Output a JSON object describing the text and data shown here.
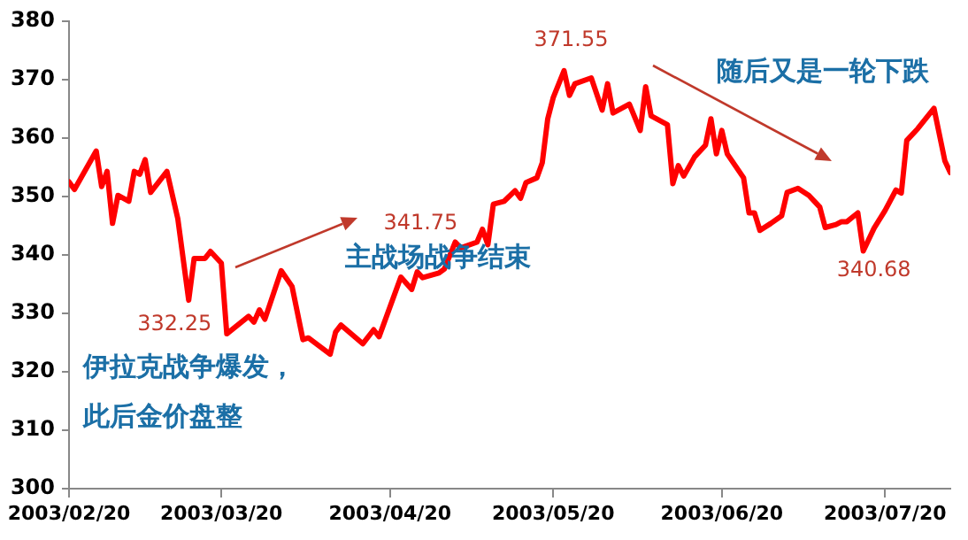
{
  "chart_data": {
    "type": "line",
    "x": [
      "2003-02-20",
      "2003-02-21",
      "2003-02-25",
      "2003-02-26",
      "2003-02-27",
      "2003-02-28",
      "2003-03-01",
      "2003-03-03",
      "2003-03-04",
      "2003-03-05",
      "2003-03-06",
      "2003-03-07",
      "2003-03-10",
      "2003-03-12",
      "2003-03-14",
      "2003-03-15",
      "2003-03-17",
      "2003-03-18",
      "2003-03-20",
      "2003-03-21",
      "2003-03-25",
      "2003-03-26",
      "2003-03-27",
      "2003-03-28",
      "2003-03-31",
      "2003-04-02",
      "2003-04-04",
      "2003-04-05",
      "2003-04-09",
      "2003-04-10",
      "2003-04-11",
      "2003-04-15",
      "2003-04-17",
      "2003-04-18",
      "2003-04-22",
      "2003-04-24",
      "2003-04-25",
      "2003-04-26",
      "2003-04-29",
      "2003-04-30",
      "2003-05-02",
      "2003-05-03",
      "2003-05-06",
      "2003-05-07",
      "2003-05-08",
      "2003-05-09",
      "2003-05-11",
      "2003-05-13",
      "2003-05-14",
      "2003-05-15",
      "2003-05-17",
      "2003-05-18",
      "2003-05-19",
      "2003-05-20",
      "2003-05-22",
      "2003-05-23",
      "2003-05-24",
      "2003-05-27",
      "2003-05-29",
      "2003-05-30",
      "2003-05-31",
      "2003-06-03",
      "2003-06-05",
      "2003-06-06",
      "2003-06-07",
      "2003-06-10",
      "2003-06-11",
      "2003-06-12",
      "2003-06-13",
      "2003-06-15",
      "2003-06-17",
      "2003-06-18",
      "2003-06-19",
      "2003-06-20",
      "2003-06-21",
      "2003-06-24",
      "2003-06-25",
      "2003-06-26",
      "2003-06-27",
      "2003-06-29",
      "2003-07-01",
      "2003-07-02",
      "2003-07-04",
      "2003-07-06",
      "2003-07-08",
      "2003-07-09",
      "2003-07-11",
      "2003-07-12",
      "2003-07-13",
      "2003-07-15",
      "2003-07-16",
      "2003-07-18",
      "2003-07-20",
      "2003-07-22",
      "2003-07-23",
      "2003-07-24",
      "2003-07-26",
      "2003-07-29",
      "2003-07-31",
      "2003-08-01"
    ],
    "values": [
      352.5,
      351.2,
      357.8,
      351.7,
      354.3,
      345.4,
      350.2,
      349.2,
      354.3,
      353.8,
      356.3,
      350.7,
      354.3,
      346.2,
      332.25,
      339.4,
      339.4,
      340.6,
      338.6,
      326.5,
      329.5,
      328.5,
      330.6,
      329.0,
      337.3,
      334.6,
      325.5,
      325.8,
      323.0,
      326.8,
      328.0,
      324.8,
      327.2,
      326.0,
      336.2,
      334.1,
      337.1,
      336.1,
      336.9,
      337.6,
      342.2,
      341.2,
      342.2,
      344.4,
      341.75,
      348.7,
      349.2,
      351.0,
      349.7,
      352.4,
      353.2,
      355.8,
      363.3,
      366.9,
      371.55,
      367.3,
      369.3,
      370.3,
      364.8,
      369.3,
      364.3,
      365.8,
      361.3,
      368.8,
      363.8,
      362.3,
      352.2,
      355.3,
      353.5,
      356.8,
      358.8,
      363.3,
      357.3,
      361.3,
      357.3,
      353.2,
      347.2,
      347.2,
      344.2,
      345.4,
      346.7,
      350.7,
      351.4,
      350.2,
      348.2,
      344.7,
      345.2,
      345.7,
      345.7,
      347.2,
      340.68,
      344.6,
      347.6,
      351.1,
      350.6,
      359.6,
      361.6,
      365.1,
      356.1,
      354.1
    ],
    "color": "#ff0000",
    "xlim": [
      "2003-02-20",
      "2003-08-01"
    ],
    "xticks": [
      {
        "value": "2003-02-20",
        "label": "2003/02/20"
      },
      {
        "value": "2003-03-20",
        "label": "2003/03/20"
      },
      {
        "value": "2003-04-20",
        "label": "2003/04/20"
      },
      {
        "value": "2003-05-20",
        "label": "2003/05/20"
      },
      {
        "value": "2003-06-20",
        "label": "2003/06/20"
      },
      {
        "value": "2003-07-20",
        "label": "2003/07/20"
      }
    ],
    "ylim": [
      300,
      380
    ],
    "yticks": [
      300,
      310,
      320,
      330,
      340,
      350,
      360,
      370,
      380
    ],
    "grid": false,
    "legend": false,
    "marker": "none",
    "line_style": "solid",
    "annotations": [
      {
        "text": "332.25",
        "x": "2003-03-14",
        "y": 332.25
      },
      {
        "text": "341.75",
        "x": "2003-05-08",
        "y": 341.75
      },
      {
        "text": "371.55",
        "x": "2003-05-22",
        "y": 371.55
      },
      {
        "text": "340.68",
        "x": "2003-07-16",
        "y": 340.68
      },
      "伊拉克战争爆发，",
      "此后金价盘整",
      "主战场战争结束",
      "随后又是一轮下跌"
    ]
  }
}
